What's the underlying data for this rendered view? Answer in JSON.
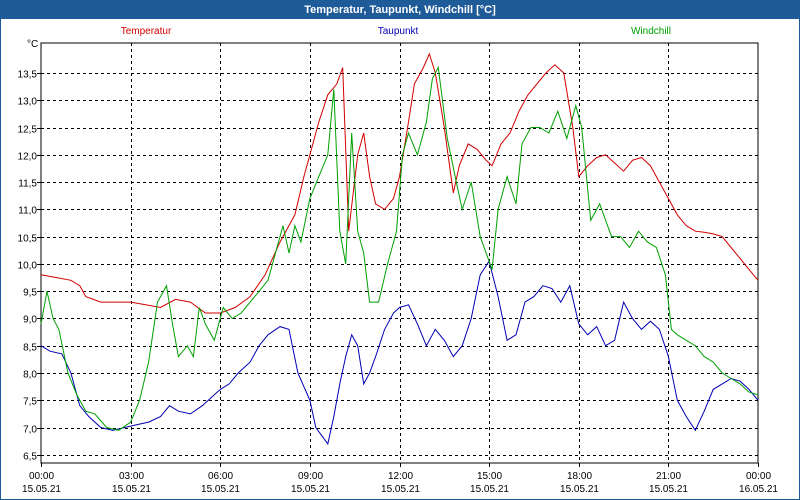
{
  "window": {
    "title": "Temperatur, Taupunkt, Windchill [°C]"
  },
  "chart_data": {
    "type": "line",
    "title": "Temperatur, Taupunkt, Windchill [°C]",
    "ylabel": "°C",
    "xlabel": "",
    "ylim": [
      6.35,
      14.05
    ],
    "xlim": [
      0,
      24
    ],
    "grid": true,
    "legend": "top",
    "yticks": [
      6.5,
      7.0,
      7.5,
      8.0,
      8.5,
      9.0,
      9.5,
      10.0,
      10.5,
      11.0,
      11.5,
      12.0,
      12.5,
      13.0,
      13.5
    ],
    "ytick_labels": [
      "6,5",
      "7,0",
      "7,5",
      "8,0",
      "8,5",
      "9,0",
      "9,5",
      "10,0",
      "10,5",
      "11,0",
      "11,5",
      "12,0",
      "12,5",
      "13,0",
      "13,5"
    ],
    "xticks": [
      {
        "x": 0,
        "time": "00:00",
        "date": "15.05.21"
      },
      {
        "x": 3,
        "time": "03:00",
        "date": "15.05.21"
      },
      {
        "x": 6,
        "time": "06:00",
        "date": "15.05.21"
      },
      {
        "x": 9,
        "time": "09:00",
        "date": "15.05.21"
      },
      {
        "x": 12,
        "time": "12:00",
        "date": "15.05.21"
      },
      {
        "x": 15,
        "time": "15:00",
        "date": "15.05.21"
      },
      {
        "x": 18,
        "time": "18:00",
        "date": "15.05.21"
      },
      {
        "x": 21,
        "time": "21:00",
        "date": "15.05.21"
      },
      {
        "x": 24,
        "time": "00:00",
        "date": "16.05.21"
      }
    ],
    "series": [
      {
        "name": "Temperatur",
        "color": "#d20000",
        "x": [
          0,
          0.5,
          1,
          1.3,
          1.5,
          2,
          2.5,
          3,
          3.5,
          4,
          4.5,
          5,
          5.5,
          6,
          6.5,
          7,
          7.5,
          8,
          8.5,
          8.8,
          9,
          9.3,
          9.6,
          9.9,
          10.1,
          10.3,
          10.6,
          10.8,
          11,
          11.2,
          11.5,
          11.8,
          12,
          12.3,
          12.5,
          12.8,
          13,
          13.2,
          13.5,
          13.8,
          14,
          14.3,
          14.6,
          14.9,
          15.1,
          15.4,
          15.7,
          16,
          16.3,
          16.6,
          16.9,
          17.2,
          17.5,
          17.8,
          18,
          18.3,
          18.6,
          18.9,
          19.2,
          19.5,
          19.8,
          20.1,
          20.4,
          20.7,
          21,
          21.3,
          21.6,
          21.9,
          22.2,
          22.5,
          22.8,
          23.1,
          23.4,
          23.7,
          24
        ],
        "values": [
          9.8,
          9.75,
          9.7,
          9.6,
          9.4,
          9.3,
          9.3,
          9.3,
          9.25,
          9.2,
          9.35,
          9.3,
          9.1,
          9.1,
          9.2,
          9.4,
          9.8,
          10.4,
          10.9,
          11.6,
          12.0,
          12.6,
          13.1,
          13.3,
          13.6,
          10.6,
          12.0,
          12.4,
          11.6,
          11.1,
          11.0,
          11.2,
          11.6,
          12.6,
          13.3,
          13.6,
          13.85,
          13.5,
          12.5,
          11.3,
          11.8,
          12.2,
          12.1,
          11.9,
          11.8,
          12.2,
          12.4,
          12.8,
          13.1,
          13.3,
          13.5,
          13.65,
          13.5,
          12.5,
          11.6,
          11.8,
          11.95,
          12.0,
          11.85,
          11.7,
          11.9,
          11.95,
          11.8,
          11.5,
          11.2,
          10.9,
          10.7,
          10.6,
          10.58,
          10.55,
          10.5,
          10.3,
          10.1,
          9.9,
          9.7
        ]
      },
      {
        "name": "Taupunkt",
        "color": "#0000b4",
        "x": [
          0,
          0.3,
          0.7,
          1,
          1.3,
          1.6,
          2,
          2.4,
          2.8,
          3.2,
          3.6,
          4,
          4.3,
          4.6,
          5,
          5.4,
          5.8,
          6,
          6.3,
          6.6,
          7,
          7.3,
          7.6,
          8,
          8.3,
          8.6,
          9,
          9.2,
          9.4,
          9.6,
          9.8,
          10,
          10.2,
          10.4,
          10.6,
          10.8,
          11,
          11.2,
          11.5,
          11.8,
          12,
          12.3,
          12.6,
          12.9,
          13.2,
          13.5,
          13.8,
          14.1,
          14.4,
          14.7,
          15,
          15.3,
          15.6,
          15.9,
          16.2,
          16.5,
          16.8,
          17.1,
          17.4,
          17.7,
          18,
          18.3,
          18.6,
          18.9,
          19.2,
          19.5,
          19.8,
          20.1,
          20.4,
          20.7,
          21,
          21.3,
          21.6,
          21.9,
          22.2,
          22.5,
          22.8,
          23.1,
          23.4,
          23.7,
          24
        ],
        "values": [
          8.5,
          8.4,
          8.35,
          8.0,
          7.4,
          7.2,
          7.0,
          6.95,
          7.0,
          7.05,
          7.1,
          7.2,
          7.4,
          7.3,
          7.25,
          7.4,
          7.6,
          7.7,
          7.8,
          8.0,
          8.2,
          8.5,
          8.7,
          8.85,
          8.8,
          8.0,
          7.5,
          7.0,
          6.85,
          6.7,
          7.2,
          7.8,
          8.3,
          8.7,
          8.5,
          7.8,
          8.0,
          8.3,
          8.8,
          9.1,
          9.2,
          9.25,
          8.9,
          8.5,
          8.8,
          8.6,
          8.3,
          8.5,
          9.0,
          9.8,
          10.05,
          9.4,
          8.6,
          8.7,
          9.3,
          9.4,
          9.6,
          9.55,
          9.3,
          9.6,
          8.9,
          8.7,
          8.85,
          8.5,
          8.6,
          9.3,
          9.0,
          8.8,
          8.95,
          8.8,
          8.3,
          7.5,
          7.2,
          6.95,
          7.3,
          7.7,
          7.8,
          7.9,
          7.85,
          7.7,
          7.5
        ],
        "values_note": "approximate readings"
      },
      {
        "name": "Windchill",
        "color": "#00a000",
        "x": [
          0,
          0.2,
          0.4,
          0.6,
          0.9,
          1.2,
          1.5,
          1.8,
          2.2,
          2.6,
          3,
          3.3,
          3.6,
          3.9,
          4.2,
          4.4,
          4.6,
          4.9,
          5.1,
          5.3,
          5.5,
          5.8,
          6.1,
          6.4,
          6.7,
          7,
          7.3,
          7.6,
          7.9,
          8.1,
          8.3,
          8.5,
          8.7,
          9,
          9.3,
          9.6,
          9.8,
          10,
          10.2,
          10.4,
          10.6,
          10.8,
          11,
          11.3,
          11.6,
          11.9,
          12.1,
          12.3,
          12.6,
          12.9,
          13.1,
          13.3,
          13.6,
          13.9,
          14.1,
          14.4,
          14.7,
          14.9,
          15.1,
          15.3,
          15.6,
          15.9,
          16.1,
          16.4,
          16.7,
          17,
          17.3,
          17.6,
          17.9,
          18.1,
          18.4,
          18.7,
          18.9,
          19.1,
          19.4,
          19.7,
          20,
          20.3,
          20.6,
          20.9,
          21.1,
          21.3,
          21.6,
          21.9,
          22.2,
          22.5,
          22.8,
          23.1,
          23.4,
          23.7,
          24
        ],
        "values": [
          8.9,
          9.5,
          9.0,
          8.8,
          8.0,
          7.6,
          7.3,
          7.25,
          7.0,
          6.95,
          7.1,
          7.5,
          8.2,
          9.3,
          9.6,
          8.9,
          8.3,
          8.5,
          8.3,
          9.2,
          8.9,
          8.6,
          9.2,
          9.0,
          9.1,
          9.3,
          9.5,
          9.7,
          10.3,
          10.7,
          10.2,
          10.7,
          10.4,
          11.2,
          11.6,
          12.0,
          13.2,
          10.6,
          10.0,
          12.4,
          10.6,
          10.2,
          9.3,
          9.3,
          10.0,
          10.6,
          12.0,
          12.4,
          12.0,
          12.6,
          13.4,
          13.6,
          12.3,
          11.5,
          11.0,
          11.5,
          10.5,
          10.2,
          9.9,
          11.0,
          11.6,
          11.1,
          12.2,
          12.5,
          12.5,
          12.4,
          12.8,
          12.3,
          12.9,
          12.5,
          10.8,
          11.1,
          10.8,
          10.5,
          10.5,
          10.3,
          10.6,
          10.4,
          10.3,
          9.8,
          8.8,
          8.7,
          8.6,
          8.5,
          8.3,
          8.2,
          8.0,
          7.9,
          7.8,
          7.65,
          7.6
        ]
      }
    ]
  }
}
